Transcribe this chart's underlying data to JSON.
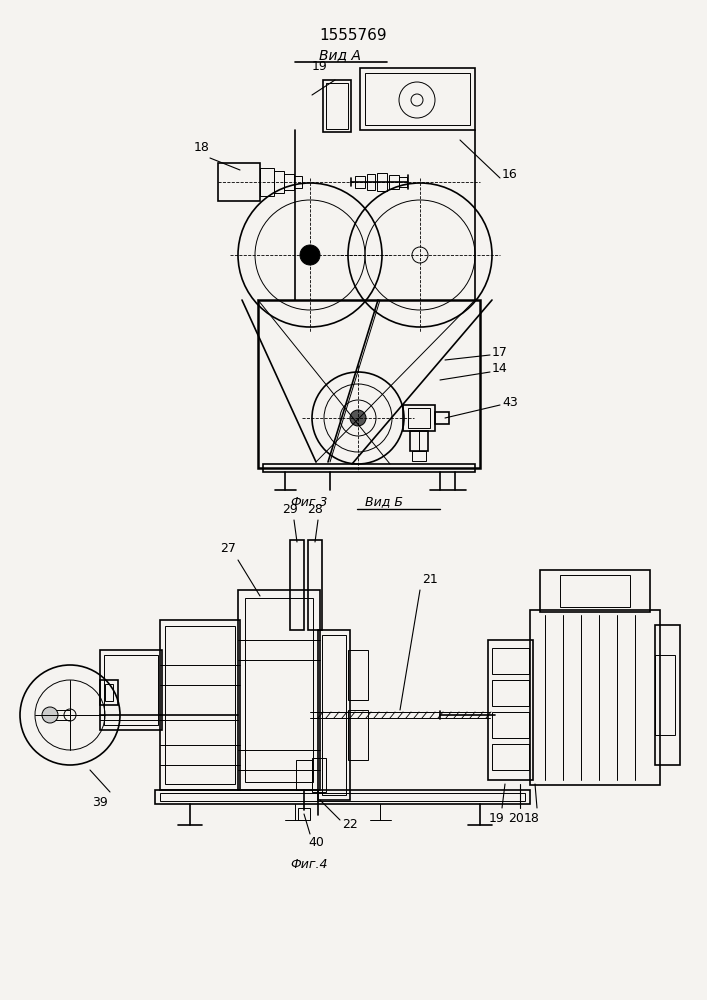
{
  "title": "1555769",
  "bg_color": "#f5f3f0",
  "label_vid_a": "Вид А",
  "label_vid_b": "Вид Б",
  "label_fig3": "Фиг.3",
  "label_fig4": "Фиг.4"
}
